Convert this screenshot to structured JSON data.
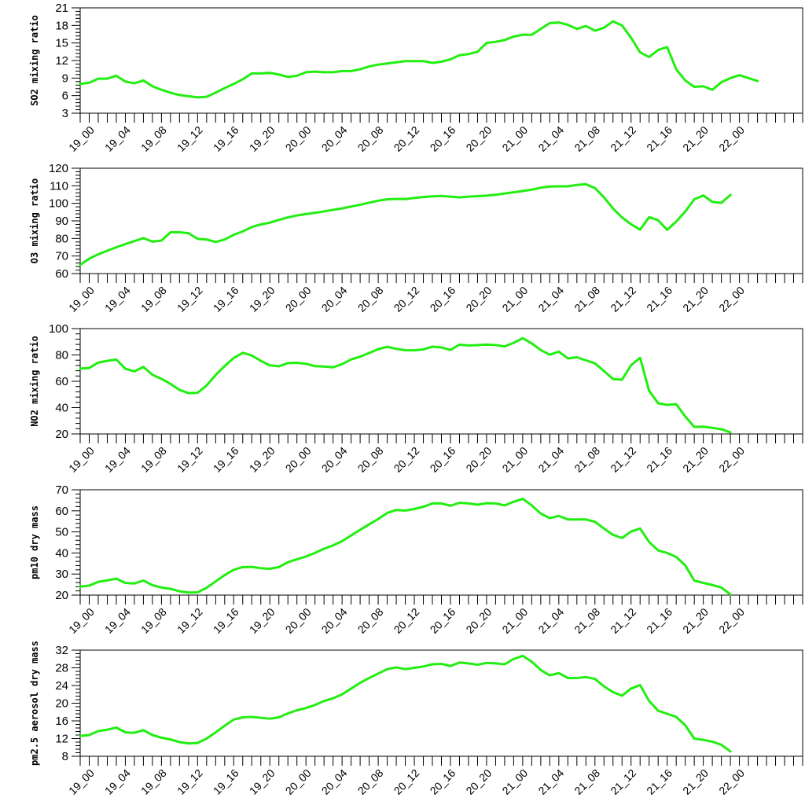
{
  "colors": {
    "line": "#22ee11",
    "axis": "#000000",
    "background": "#ffffff"
  },
  "chart_data": [
    {
      "type": "line",
      "ylabel": "SO2 mixing ratio",
      "ylim": [
        3,
        21
      ],
      "yticks": [
        3,
        6,
        9,
        12,
        15,
        18,
        21
      ],
      "xlim": [
        0,
        80
      ],
      "xtick_labels": [
        "19_00",
        "19_04",
        "19_08",
        "19_12",
        "19_16",
        "19_20",
        "20_00",
        "20_04",
        "20_08",
        "20_12",
        "20_16",
        "20_20",
        "21_00",
        "21_04",
        "21_08",
        "21_12",
        "21_16",
        "21_20",
        "22_00"
      ],
      "grid": false,
      "series": [
        {
          "values": [
            8.0,
            8.2,
            8.9,
            8.9,
            9.4,
            8.4,
            8.1,
            8.6,
            7.6,
            7.0,
            6.5,
            6.1,
            5.9,
            5.7,
            5.8,
            6.5,
            7.3,
            8.0,
            8.8,
            9.8,
            9.8,
            9.9,
            9.6,
            9.2,
            9.4,
            10.0,
            10.1,
            10.0,
            10.0,
            10.2,
            10.2,
            10.5,
            11.0,
            11.3,
            11.5,
            11.7,
            11.9,
            11.9,
            11.9,
            11.6,
            11.8,
            12.2,
            12.9,
            13.1,
            13.5,
            15.0,
            15.2,
            15.5,
            16.1,
            16.4,
            16.4,
            17.4,
            18.4,
            18.5,
            18.1,
            17.4,
            17.9,
            17.1,
            17.6,
            18.7,
            18.0,
            15.9,
            13.4,
            12.6,
            13.8,
            14.3,
            10.5,
            8.6,
            7.5,
            7.6,
            7.0,
            8.3,
            9.0,
            9.5,
            9.0,
            8.5
          ]
        }
      ]
    },
    {
      "type": "line",
      "ylabel": "O3 mixing ratio",
      "ylim": [
        60,
        120
      ],
      "yticks": [
        60,
        70,
        80,
        90,
        100,
        110,
        120
      ],
      "xlim": [
        0,
        80
      ],
      "xtick_labels": [
        "19_00",
        "19_04",
        "19_08",
        "19_12",
        "19_16",
        "19_20",
        "20_00",
        "20_04",
        "20_08",
        "20_12",
        "20_16",
        "20_20",
        "21_00",
        "21_04",
        "21_08",
        "21_12",
        "21_16",
        "21_20",
        "22_00"
      ],
      "grid": false,
      "series": [
        {
          "values": [
            65.0,
            68.5,
            71.0,
            73.0,
            75.0,
            76.8,
            78.5,
            80.2,
            78.2,
            78.8,
            83.5,
            83.5,
            83.0,
            79.8,
            79.4,
            78.0,
            79.4,
            82.1,
            84.0,
            86.5,
            88.0,
            89.0,
            90.6,
            92.0,
            93.1,
            93.9,
            94.6,
            95.4,
            96.3,
            97.1,
            98.2,
            99.2,
            100.4,
            101.5,
            102.3,
            102.5,
            102.4,
            103.1,
            103.6,
            104.0,
            104.2,
            103.8,
            103.4,
            103.8,
            104.1,
            104.4,
            104.9,
            105.6,
            106.3,
            107.0,
            107.8,
            108.9,
            109.6,
            109.7,
            109.7,
            110.5,
            110.9,
            108.7,
            103.4,
            97.1,
            92.0,
            88.1,
            85.0,
            92.1,
            90.4,
            84.9,
            89.6,
            95.3,
            102.3,
            104.5,
            100.8,
            100.3,
            104.8
          ]
        }
      ]
    },
    {
      "type": "line",
      "ylabel": "NO2 mixing ratio",
      "ylim": [
        20,
        100
      ],
      "yticks": [
        20,
        40,
        60,
        80,
        100
      ],
      "xlim": [
        0,
        80
      ],
      "xtick_labels": [
        "19_00",
        "19_04",
        "19_08",
        "19_12",
        "19_16",
        "19_20",
        "20_00",
        "20_04",
        "20_08",
        "20_12",
        "20_16",
        "20_20",
        "21_00",
        "21_04",
        "21_08",
        "21_12",
        "21_16",
        "21_20",
        "22_00"
      ],
      "grid": false,
      "series": [
        {
          "values": [
            69.6,
            70.1,
            74.2,
            75.5,
            76.5,
            69.5,
            67.5,
            70.9,
            64.9,
            61.8,
            58.0,
            53.4,
            51.0,
            51.3,
            56.8,
            64.8,
            71.6,
            77.7,
            81.6,
            79.6,
            75.5,
            72.1,
            71.4,
            73.8,
            74.0,
            73.3,
            71.5,
            71.2,
            70.6,
            73.0,
            76.6,
            78.7,
            81.5,
            84.4,
            86.2,
            84.6,
            83.6,
            83.5,
            84.2,
            86.3,
            85.7,
            83.8,
            87.8,
            87.2,
            87.5,
            87.8,
            87.5,
            86.5,
            89.2,
            92.7,
            88.8,
            83.7,
            80.2,
            82.5,
            77.4,
            78.2,
            75.9,
            73.6,
            67.8,
            61.7,
            61.2,
            72.2,
            77.8,
            52.8,
            43.3,
            42.1,
            42.6,
            33.3,
            25.4,
            25.5,
            24.6,
            23.6,
            21.2
          ]
        }
      ]
    },
    {
      "type": "line",
      "ylabel": "pm10 dry mass",
      "ylim": [
        20,
        70
      ],
      "yticks": [
        20,
        30,
        40,
        50,
        60,
        70
      ],
      "xlim": [
        0,
        80
      ],
      "xtick_labels": [
        "19_00",
        "19_04",
        "19_08",
        "19_12",
        "19_16",
        "19_20",
        "20_00",
        "20_04",
        "20_08",
        "20_12",
        "20_16",
        "20_20",
        "21_00",
        "21_04",
        "21_08",
        "21_12",
        "21_16",
        "21_20",
        "22_00"
      ],
      "grid": false,
      "series": [
        {
          "values": [
            24.0,
            24.5,
            26.3,
            27.0,
            27.8,
            25.8,
            25.5,
            26.9,
            24.7,
            23.6,
            23.0,
            21.8,
            21.2,
            21.3,
            23.5,
            26.5,
            29.5,
            32.0,
            33.3,
            33.4,
            32.8,
            32.5,
            33.3,
            35.6,
            37.0,
            38.3,
            40.0,
            42.0,
            43.6,
            45.6,
            48.3,
            51.0,
            53.6,
            56.1,
            59.0,
            60.4,
            60.1,
            60.9,
            61.9,
            63.5,
            63.5,
            62.4,
            63.8,
            63.5,
            62.9,
            63.6,
            63.5,
            62.6,
            64.3,
            65.7,
            62.6,
            58.7,
            56.5,
            57.6,
            55.9,
            55.9,
            55.9,
            54.8,
            51.6,
            48.6,
            47.1,
            50.2,
            51.6,
            45.2,
            41.2,
            40.0,
            38.1,
            34.1,
            26.9,
            25.8,
            24.8,
            23.6,
            20.3
          ]
        }
      ]
    },
    {
      "type": "line",
      "ylabel": "pm2.5 aerosol dry mass",
      "ylim": [
        8,
        32
      ],
      "yticks": [
        8,
        12,
        16,
        20,
        24,
        28,
        32
      ],
      "xlim": [
        0,
        80
      ],
      "xtick_labels": [
        "19_00",
        "19_04",
        "19_08",
        "19_12",
        "19_16",
        "19_20",
        "20_00",
        "20_04",
        "20_08",
        "20_12",
        "20_16",
        "20_20",
        "21_00",
        "21_04",
        "21_08",
        "21_12",
        "21_16",
        "21_20",
        "22_00"
      ],
      "grid": false,
      "series": [
        {
          "values": [
            12.6,
            12.8,
            13.7,
            14.0,
            14.5,
            13.4,
            13.3,
            13.9,
            12.8,
            12.2,
            11.8,
            11.2,
            10.9,
            11.0,
            12.0,
            13.4,
            14.9,
            16.3,
            16.8,
            16.9,
            16.7,
            16.5,
            16.8,
            17.7,
            18.4,
            18.9,
            19.6,
            20.5,
            21.1,
            22.0,
            23.3,
            24.6,
            25.7,
            26.7,
            27.7,
            28.1,
            27.7,
            28.0,
            28.3,
            28.8,
            28.9,
            28.4,
            29.2,
            29.0,
            28.7,
            29.1,
            29.0,
            28.8,
            30.0,
            30.7,
            29.4,
            27.5,
            26.3,
            26.8,
            25.7,
            25.7,
            25.9,
            25.5,
            23.8,
            22.5,
            21.7,
            23.3,
            24.1,
            20.5,
            18.3,
            17.6,
            16.9,
            15.0,
            12.0,
            11.7,
            11.3,
            10.6,
            9.1
          ]
        }
      ]
    }
  ]
}
